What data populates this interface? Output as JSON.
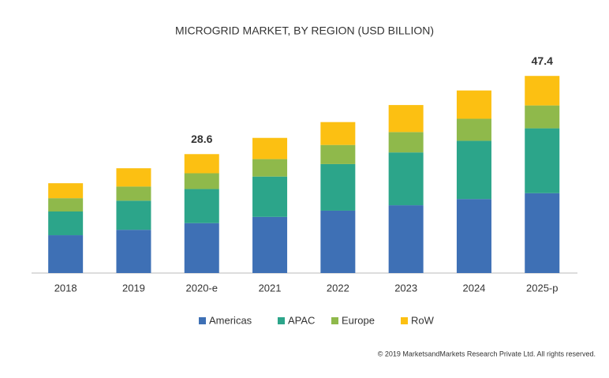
{
  "chart_data": {
    "type": "stacked_bar",
    "title": "MICROGRID MARKET, BY REGION (USD BILLION)",
    "categories": [
      "2018",
      "2019",
      "2020-e",
      "2021",
      "2022",
      "2023",
      "2024",
      "2025-p"
    ],
    "series": [
      {
        "name": "Americas",
        "color": "#3e70b5",
        "values": [
          9.1,
          10.4,
          12.0,
          13.5,
          15.0,
          16.3,
          17.8,
          19.2
        ]
      },
      {
        "name": "APAC",
        "color": "#2ca58a",
        "values": [
          5.7,
          7.0,
          8.2,
          9.7,
          11.2,
          12.7,
          14.0,
          15.6
        ]
      },
      {
        "name": "Europe",
        "color": "#8fb94b",
        "values": [
          3.2,
          3.4,
          3.8,
          4.2,
          4.6,
          4.9,
          5.3,
          5.5
        ]
      },
      {
        "name": "RoW",
        "color": "#fcc012",
        "values": [
          3.6,
          4.4,
          4.6,
          5.1,
          5.5,
          6.5,
          6.8,
          7.1
        ]
      }
    ],
    "total_labels": [
      null,
      null,
      28.6,
      null,
      null,
      null,
      null,
      47.4
    ],
    "copyright": "© 2019 MarketsandMarkets Research Private Ltd. All rights reserved."
  }
}
